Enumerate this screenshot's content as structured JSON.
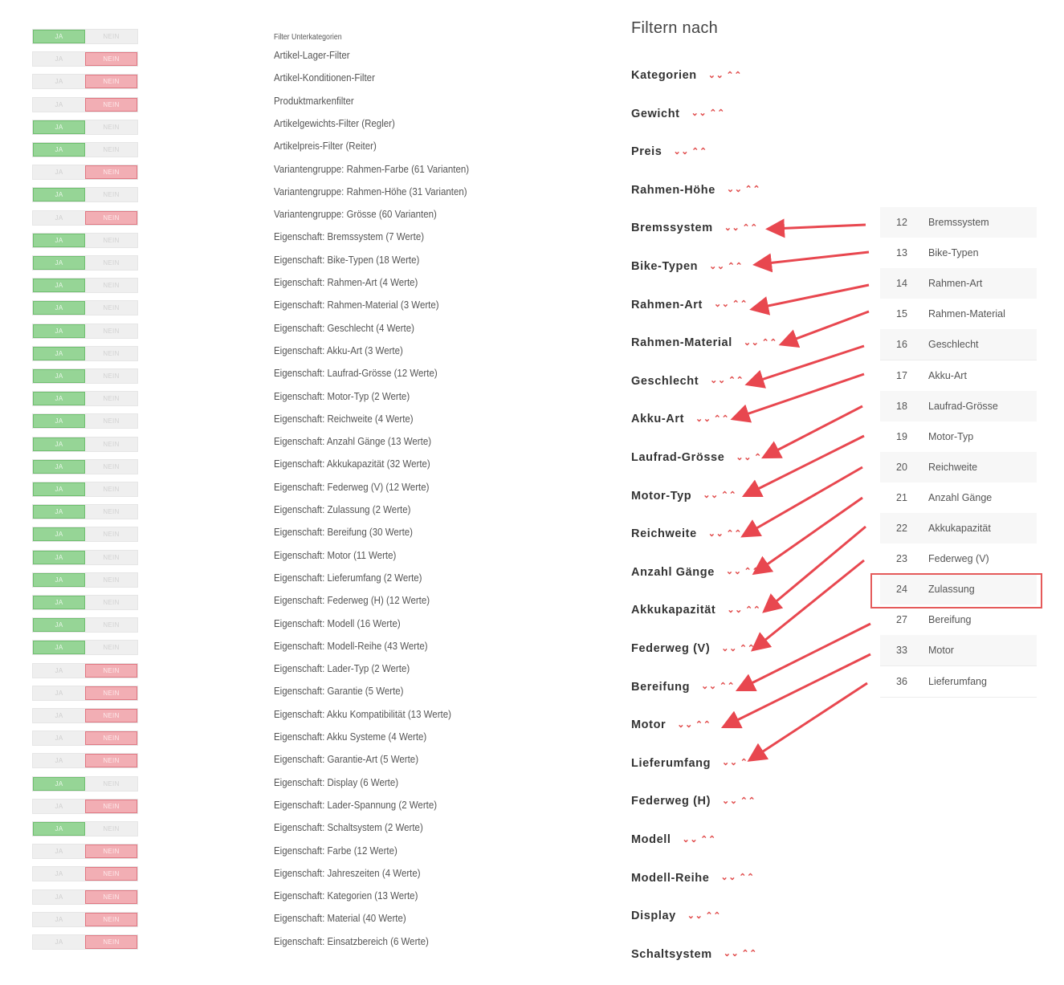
{
  "toggles": {
    "yes_label": "JA",
    "no_label": "NEIN",
    "states": [
      true,
      false,
      false,
      false,
      true,
      true,
      false,
      true,
      false,
      true,
      true,
      true,
      true,
      true,
      true,
      true,
      true,
      true,
      true,
      true,
      true,
      true,
      true,
      true,
      true,
      true,
      true,
      true,
      false,
      false,
      false,
      false,
      false,
      true,
      false,
      true,
      false,
      false,
      false,
      false,
      false
    ]
  },
  "subcategory_filters": {
    "heading": "Filter Unterkategorien",
    "items": [
      "Artikel-Lager-Filter",
      "Artikel-Konditionen-Filter",
      "Produktmarkenfilter",
      "Artikelgewichts-Filter (Regler)",
      "Artikelpreis-Filter (Reiter)",
      "Variantengruppe: Rahmen-Farbe (61 Varianten)",
      "Variantengruppe: Rahmen-Höhe (31 Varianten)",
      "Variantengruppe: Grösse (60 Varianten)",
      "Eigenschaft: Bremssystem (7 Werte)",
      "Eigenschaft: Bike-Typen (18 Werte)",
      "Eigenschaft: Rahmen-Art (4 Werte)",
      "Eigenschaft: Rahmen-Material (3 Werte)",
      "Eigenschaft: Geschlecht (4 Werte)",
      "Eigenschaft: Akku-Art (3 Werte)",
      "Eigenschaft: Laufrad-Grösse (12 Werte)",
      "Eigenschaft: Motor-Typ (2 Werte)",
      "Eigenschaft: Reichweite (4 Werte)",
      "Eigenschaft: Anzahl Gänge (13 Werte)",
      "Eigenschaft: Akkukapazität (32 Werte)",
      "Eigenschaft: Federweg (V) (12 Werte)",
      "Eigenschaft: Zulassung (2 Werte)",
      "Eigenschaft: Bereifung (30 Werte)",
      "Eigenschaft: Motor (11 Werte)",
      "Eigenschaft: Lieferumfang (2 Werte)",
      "Eigenschaft: Federweg (H) (12 Werte)",
      "Eigenschaft: Modell (16 Werte)",
      "Eigenschaft: Modell-Reihe (43 Werte)",
      "Eigenschaft: Lader-Typ (2 Werte)",
      "Eigenschaft: Garantie (5 Werte)",
      "Eigenschaft: Akku Kompatibilität (13 Werte)",
      "Eigenschaft: Akku Systeme (4 Werte)",
      "Eigenschaft: Garantie-Art (5 Werte)",
      "Eigenschaft: Display (6 Werte)",
      "Eigenschaft: Lader-Spannung (2 Werte)",
      "Eigenschaft: Schaltsystem (2 Werte)",
      "Eigenschaft: Farbe (12 Werte)",
      "Eigenschaft: Jahreszeiten (4 Werte)",
      "Eigenschaft: Kategorien (13 Werte)",
      "Eigenschaft: Material (40 Werte)",
      "Eigenschaft: Einsatzbereich (6 Werte)"
    ]
  },
  "filter_panel": {
    "title": "Filtern nach",
    "items": [
      "Kategorien",
      "Gewicht",
      "Preis",
      "Rahmen-Höhe",
      "Bremssystem",
      "Bike-Typen",
      "Rahmen-Art",
      "Rahmen-Material",
      "Geschlecht",
      "Akku-Art",
      "Laufrad-Grösse",
      "Motor-Typ",
      "Reichweite",
      "Anzahl Gänge",
      "Akkukapazität",
      "Federweg (V)",
      "Bereifung",
      "Motor",
      "Lieferumfang",
      "Federweg (H)",
      "Modell",
      "Modell-Reihe",
      "Display",
      "Schaltsystem"
    ],
    "chevron_down": "⌄⌄",
    "chevron_up": "⌃⌃"
  },
  "id_table": {
    "rows": [
      {
        "id": "12",
        "name": "Bremssystem"
      },
      {
        "id": "13",
        "name": "Bike-Typen"
      },
      {
        "id": "14",
        "name": "Rahmen-Art"
      },
      {
        "id": "15",
        "name": "Rahmen-Material"
      },
      {
        "id": "16",
        "name": "Geschlecht"
      },
      {
        "id": "17",
        "name": "Akku-Art"
      },
      {
        "id": "18",
        "name": "Laufrad-Grösse"
      },
      {
        "id": "19",
        "name": "Motor-Typ"
      },
      {
        "id": "20",
        "name": "Reichweite"
      },
      {
        "id": "21",
        "name": "Anzahl Gänge"
      },
      {
        "id": "22",
        "name": "Akkukapazität"
      },
      {
        "id": "23",
        "name": "Federweg (V)"
      },
      {
        "id": "24",
        "name": "Zulassung"
      },
      {
        "id": "27",
        "name": "Bereifung"
      },
      {
        "id": "33",
        "name": "Motor"
      },
      {
        "id": "36",
        "name": "Lieferumfang"
      }
    ],
    "highlighted_id": "24"
  },
  "colors": {
    "accent_red": "#e8474f",
    "yes_green": "#96d596",
    "no_red": "#f2aeb4"
  }
}
